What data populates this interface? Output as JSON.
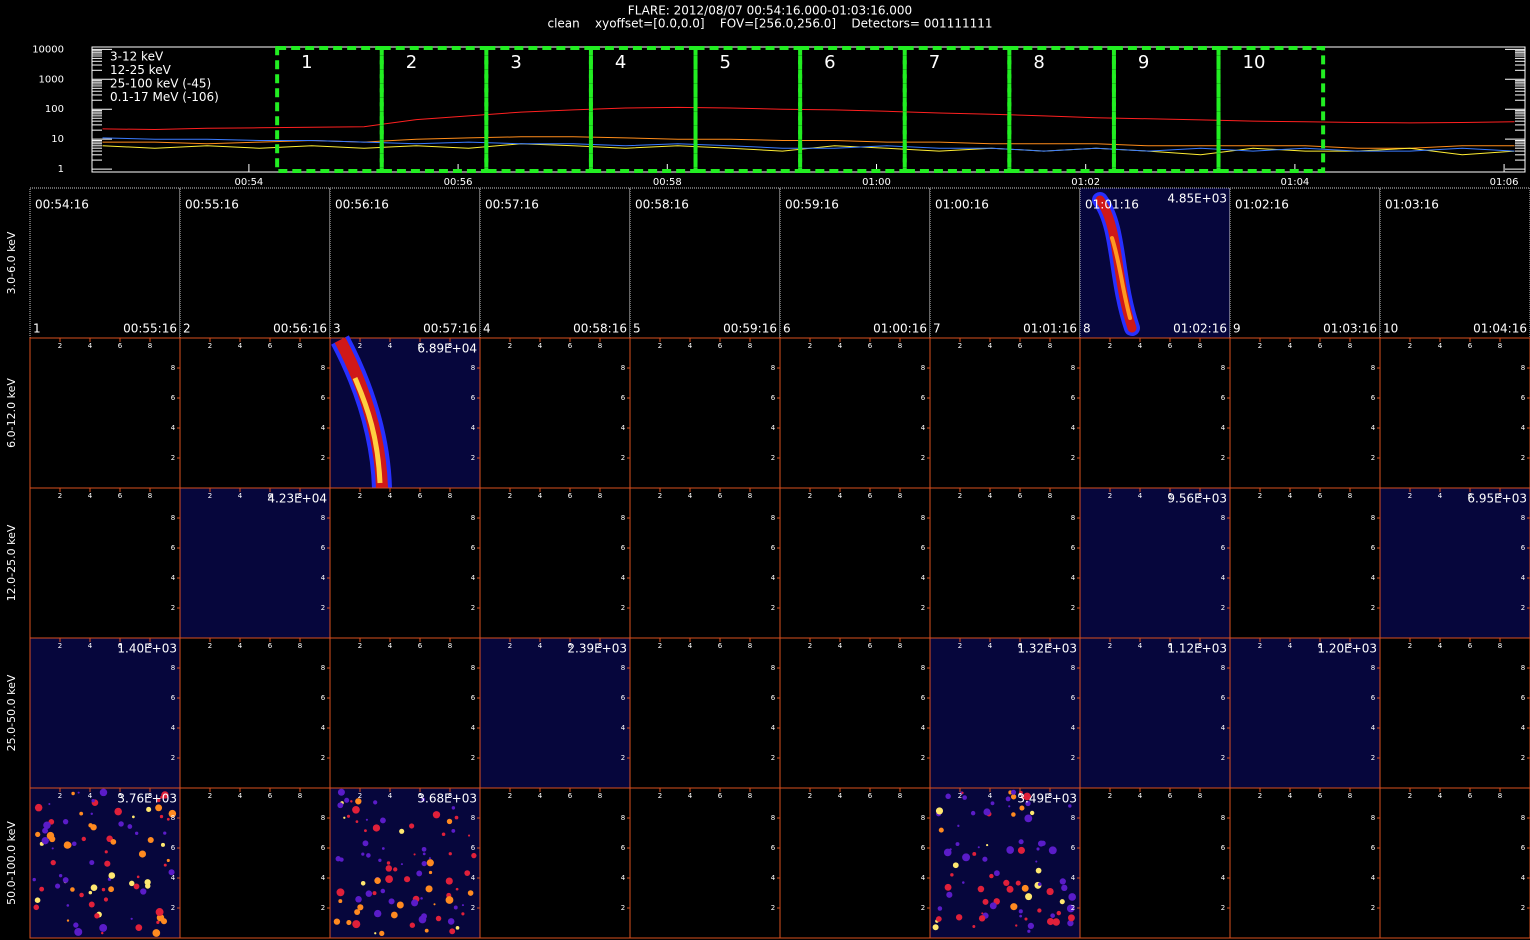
{
  "header": {
    "title": "FLARE: 2012/08/07 00:54:16.000-01:03:16.000",
    "subtitle": "clean    xyoffset=[0.0,0.0]    FOV=[256.0,256.0]    Detectors= 001111111"
  },
  "chart_data": {
    "type": "line",
    "log_scale": true,
    "x": [
      52.6,
      53.1,
      53.6,
      54.1,
      54.6,
      55.1,
      55.6,
      56.1,
      56.6,
      57.1,
      57.6,
      58.1,
      58.6,
      59.1,
      59.6,
      60.1,
      60.6,
      61.1,
      61.6,
      62.1,
      62.6,
      63.1,
      63.6,
      64.1,
      64.6,
      65.1,
      65.6,
      66.1
    ],
    "xlim": [
      52.5,
      66.2
    ],
    "ylim": [
      0.8,
      12000
    ],
    "xticks": [
      {
        "value": 54,
        "label": "00:54"
      },
      {
        "value": 56,
        "label": "00:56"
      },
      {
        "value": 58,
        "label": "00:58"
      },
      {
        "value": 60,
        "label": "01:00"
      },
      {
        "value": 62,
        "label": "01:02"
      },
      {
        "value": 64,
        "label": "01:04"
      },
      {
        "value": 66,
        "label": "01:06"
      }
    ],
    "yticks": [
      1,
      10,
      100,
      1000,
      10000
    ],
    "series": [
      {
        "name": "3-12 keV",
        "color": "#ff2020",
        "values": [
          22,
          21,
          23,
          24,
          25,
          26,
          45,
          60,
          80,
          95,
          110,
          115,
          110,
          100,
          95,
          85,
          75,
          68,
          60,
          52,
          48,
          44,
          40,
          38,
          36,
          35,
          36,
          38
        ]
      },
      {
        "name": "12-25 keV",
        "color": "#ff8c1a",
        "values": [
          8,
          8,
          7,
          8,
          9,
          8,
          10,
          11,
          12,
          12,
          11,
          10,
          10,
          9,
          9,
          8,
          8,
          7,
          7,
          7,
          6,
          6,
          6,
          6,
          5,
          5,
          6,
          6
        ]
      },
      {
        "name": "25-100 keV (-45)",
        "color": "#ffee33",
        "values": [
          6,
          5,
          6,
          5,
          6,
          5,
          6,
          5,
          7,
          6,
          5,
          6,
          5,
          4,
          6,
          5,
          4,
          5,
          4,
          5,
          4,
          3,
          5,
          4,
          4,
          5,
          3,
          4
        ]
      },
      {
        "name": "0.1-17 MeV (-106)",
        "color": "#3a7bff",
        "values": [
          11,
          10,
          10,
          9,
          9,
          8,
          7,
          8,
          7,
          7,
          6,
          7,
          6,
          5,
          5,
          6,
          5,
          5,
          4,
          5,
          4,
          5,
          4,
          5,
          4,
          4,
          5,
          4
        ]
      }
    ],
    "intervals": [
      {
        "label": "1",
        "start": 54.27,
        "end": 55.27
      },
      {
        "label": "2",
        "start": 55.27,
        "end": 56.27
      },
      {
        "label": "3",
        "start": 56.27,
        "end": 57.27
      },
      {
        "label": "4",
        "start": 57.27,
        "end": 58.27
      },
      {
        "label": "5",
        "start": 58.27,
        "end": 59.27
      },
      {
        "label": "6",
        "start": 59.27,
        "end": 60.27
      },
      {
        "label": "7",
        "start": 60.27,
        "end": 61.27
      },
      {
        "label": "8",
        "start": 61.27,
        "end": 62.27
      },
      {
        "label": "9",
        "start": 62.27,
        "end": 63.27
      },
      {
        "label": "10",
        "start": 63.27,
        "end": 64.27
      }
    ]
  },
  "image_grid": {
    "panel_ticks": [
      2,
      4,
      6,
      8
    ],
    "start_times": [
      "00:54:16",
      "00:55:16",
      "00:56:16",
      "00:57:16",
      "00:58:16",
      "00:59:16",
      "01:00:16",
      "01:01:16",
      "01:02:16",
      "01:03:16"
    ],
    "end_times": [
      "00:55:16",
      "00:56:16",
      "00:57:16",
      "00:58:16",
      "00:59:16",
      "01:00:16",
      "01:01:16",
      "01:02:16",
      "01:03:16",
      "01:04:16"
    ],
    "rows": [
      {
        "label": "3.0-6.0 keV",
        "max_labels": [
          null,
          null,
          null,
          null,
          null,
          null,
          null,
          "4.85E+03",
          null,
          null
        ]
      },
      {
        "label": "6.0-12.0 keV",
        "max_labels": [
          null,
          null,
          "6.89E+04",
          null,
          null,
          null,
          null,
          null,
          null,
          null
        ]
      },
      {
        "label": "12.0-25.0 keV",
        "max_labels": [
          null,
          "4.23E+04",
          null,
          null,
          null,
          null,
          null,
          "9.56E+03",
          null,
          "6.95E+03"
        ]
      },
      {
        "label": "25.0-50.0 keV",
        "max_labels": [
          "1.40E+03",
          null,
          null,
          "2.39E+03",
          null,
          null,
          "1.32E+03",
          "1.12E+03",
          "1.20E+03",
          null
        ]
      },
      {
        "label": "50.0-100.0 keV",
        "max_labels": [
          "3.76E+03",
          null,
          "3.68E+03",
          null,
          null,
          null,
          "3.49E+03",
          null,
          null,
          null
        ]
      }
    ]
  }
}
